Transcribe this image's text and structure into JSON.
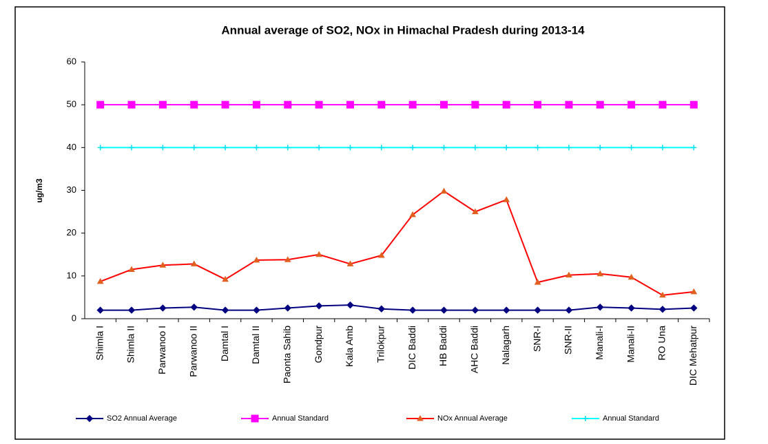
{
  "chart_data": {
    "type": "line",
    "title": "Annual average of SO2, NOx in Himachal Pradesh during 2013-14",
    "y_label": "ug/m3",
    "categories": [
      "Shimla I",
      "Shimla II",
      "Parwanoo I",
      "Parwanoo II",
      "Damtal I",
      "Damtal II",
      "Paonta Sahib",
      "Gondpur",
      "Kala Amb",
      "Trilokpur",
      "DIC Baddi",
      "HB Baddi",
      "AHC Baddi",
      "Nalagarh",
      "SNR-I",
      "SNR-II",
      "Manali-I",
      "Manali-II",
      "RO Una",
      "DIC Mehatpur"
    ],
    "series": [
      {
        "name": "SO2 Annual Average",
        "color": "#000080",
        "marker_color": "#000080",
        "marker": "diamond",
        "values": [
          2,
          2,
          2.5,
          2.7,
          2,
          2,
          2.5,
          3,
          3.2,
          2.3,
          2,
          2,
          2,
          2,
          2,
          2,
          2.7,
          2.5,
          2.2,
          2.5
        ]
      },
      {
        "name": "Annual Standard",
        "color": "#ff00ff",
        "marker_color": "#ff00ff",
        "marker": "square",
        "values": [
          50,
          50,
          50,
          50,
          50,
          50,
          50,
          50,
          50,
          50,
          50,
          50,
          50,
          50,
          50,
          50,
          50,
          50,
          50,
          50
        ]
      },
      {
        "name": "NOx Annual Average",
        "color": "#ff0000",
        "marker_color": "#e06020",
        "marker": "triangle",
        "values": [
          8.7,
          11.5,
          12.5,
          12.8,
          9.2,
          13.7,
          13.8,
          15,
          12.8,
          14.8,
          24.3,
          29.8,
          25,
          27.8,
          8.5,
          10.2,
          10.5,
          9.7,
          5.5,
          6.3
        ]
      },
      {
        "name": "Annual Standard",
        "color": "#00ffff",
        "marker_color": "#00e0f0",
        "marker": "star",
        "values": [
          40,
          40,
          40,
          40,
          40,
          40,
          40,
          40,
          40,
          40,
          40,
          40,
          40,
          40,
          40,
          40,
          40,
          40,
          40,
          40
        ]
      }
    ],
    "ylim": [
      0,
      60
    ],
    "yticks": [
      0,
      10,
      20,
      30,
      40,
      50,
      60
    ],
    "grid": false,
    "legend": "bottom"
  }
}
